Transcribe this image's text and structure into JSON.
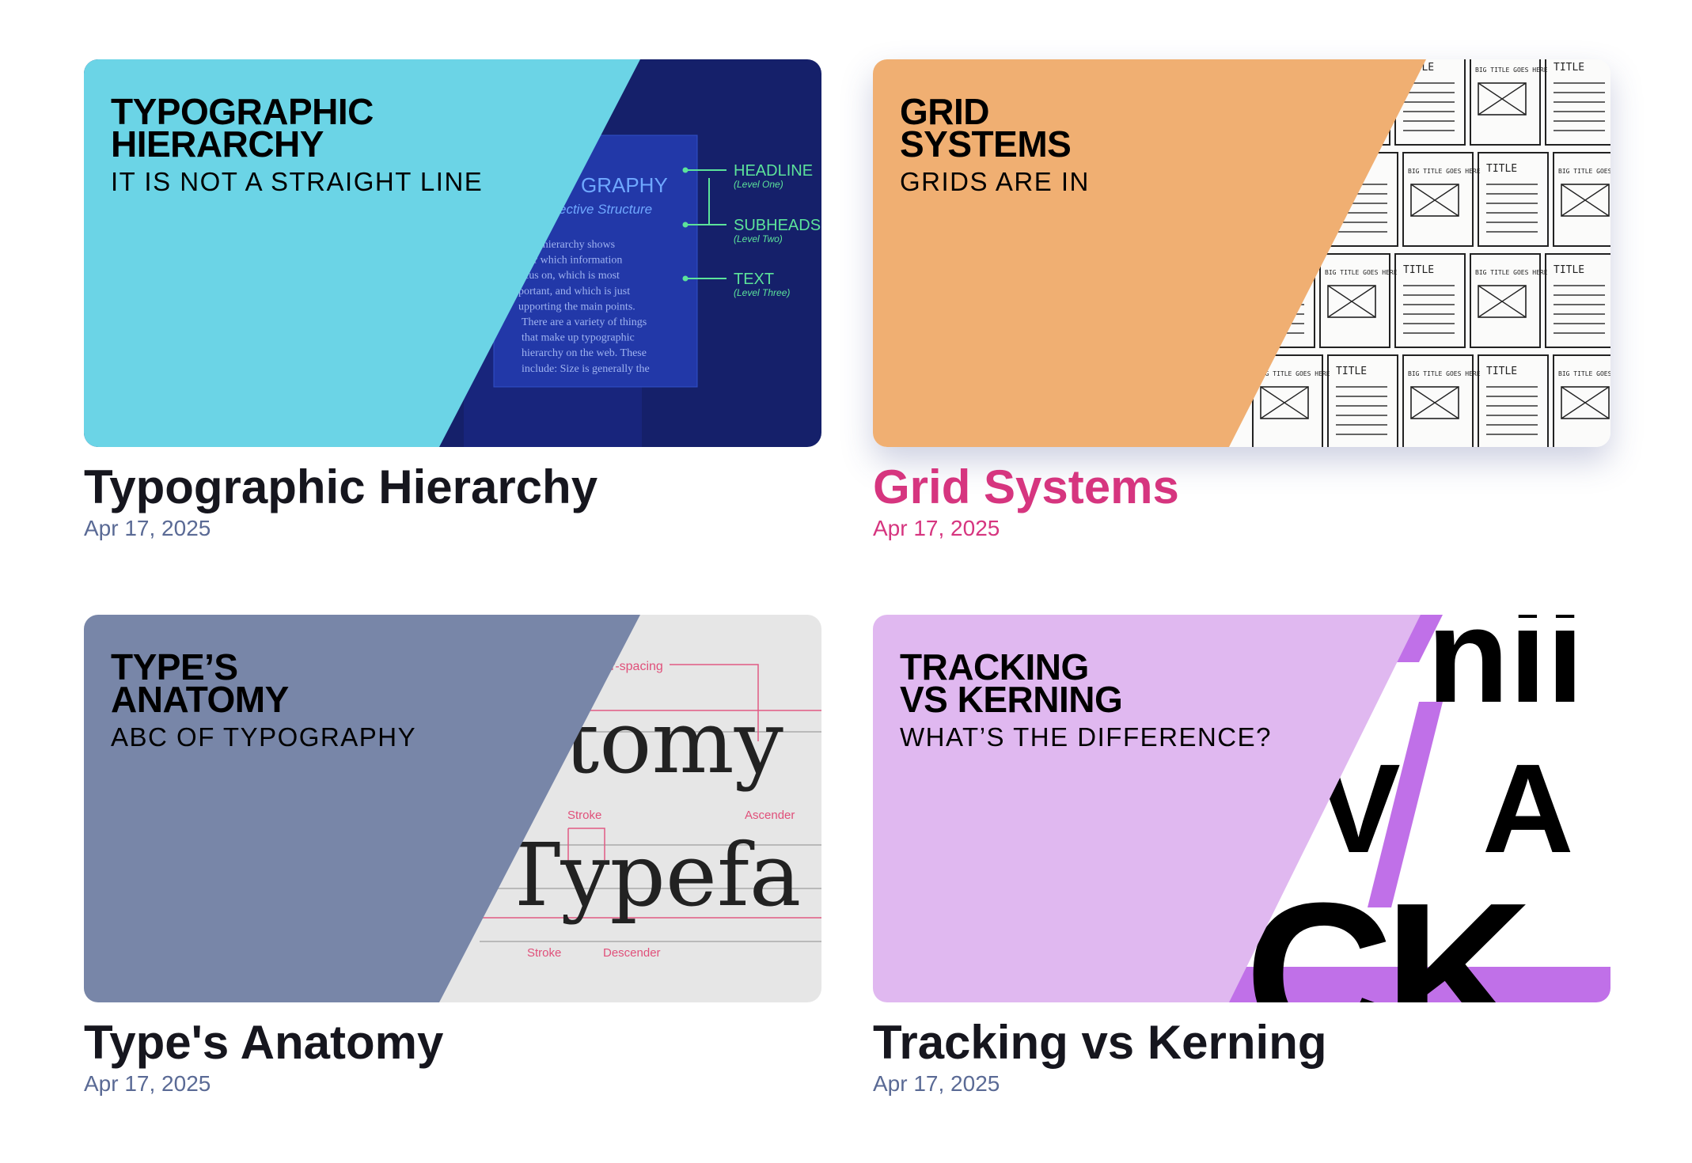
{
  "cards": [
    {
      "banner": {
        "heading": [
          "TYPOGRAPHIC",
          "HIERARCHY"
        ],
        "subheading": "IT IS NOT A STRAIGHT LINE",
        "labels": [
          "GRAPHY",
          "ective Structure",
          "aphy hierarchy shows",
          "ader which information",
          "ocus on, which is most",
          "portant, and which is just",
          "upporting the main points.",
          "There are a variety of things",
          "that make up typographic",
          "hierarchy on the web. These",
          "include: Size is generally the",
          "HEADLINE",
          "(Level One)",
          "SUBHEADS",
          "(Level Two)",
          "TEXT",
          "(Level Three)"
        ]
      },
      "title": "Typographic Hierarchy",
      "date": "Apr 17, 2025"
    },
    {
      "banner": {
        "heading": [
          "GRID",
          "SYSTEMS"
        ],
        "subheading": "GRIDS ARE IN",
        "labels": [
          "TITLE",
          "BIG TITLE GOES HERE"
        ]
      },
      "title": "Grid Systems",
      "date": "Apr 17, 2025"
    },
    {
      "banner": {
        "heading": [
          "TYPE’S",
          "ANATOMY"
        ],
        "subheading": "ABC OF TYPOGRAPHY",
        "labels": [
          "r-spacing",
          "tomy",
          "Stroke",
          "Ascender",
          "Typefa",
          "Stroke",
          "Descender"
        ]
      },
      "title": "Type's Anatomy",
      "date": "Apr 17, 2025"
    },
    {
      "banner": {
        "heading": [
          "TRACKING",
          "VS KERNING"
        ],
        "subheading": "WHAT’S THE DIFFERENCE?",
        "labels": [
          "nii",
          "V",
          "A",
          "CK"
        ]
      },
      "title": "Tracking vs Kerning",
      "date": "Apr 17, 2025"
    }
  ]
}
